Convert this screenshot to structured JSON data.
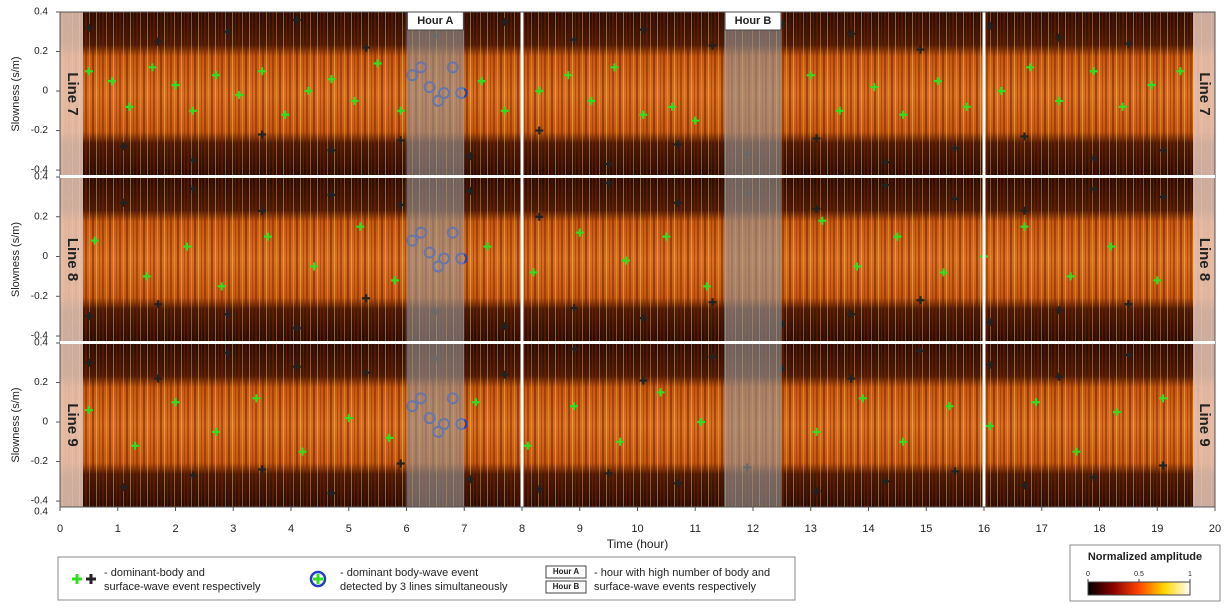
{
  "chart_data": [
    {
      "type": "scatter",
      "panel_label": "Line 7",
      "ylabel": "Slowness (s/m)",
      "ylim": [
        -0.43,
        0.4
      ],
      "yticks": [
        -0.4,
        -0.2,
        0,
        0.2,
        0.4
      ],
      "highlights": [
        {
          "label": "Hour A",
          "range": [
            6,
            7
          ]
        },
        {
          "label": "Hour B",
          "range": [
            11.5,
            12.5
          ]
        }
      ],
      "gap_lines": [
        8,
        16
      ],
      "series": [
        {
          "color": "#222222",
          "marker": "plus",
          "x": [
            0.5,
            1.1,
            1.7,
            2.3,
            2.9,
            3.5,
            4.1,
            4.7,
            5.3,
            5.9,
            6.5,
            7.1,
            7.7,
            8.3,
            8.9,
            9.5,
            10.1,
            10.7,
            11.3,
            11.9,
            12.5,
            13.1,
            13.7,
            14.3,
            14.9,
            15.5,
            16.1,
            16.7,
            17.3,
            17.9,
            18.5,
            19.1
          ],
          "values": [
            0.32,
            -0.28,
            0.25,
            -0.35,
            0.3,
            -0.22,
            0.36,
            -0.3,
            0.22,
            -0.25,
            0.28,
            -0.33,
            0.35,
            -0.2,
            0.26,
            -0.37,
            0.31,
            -0.27,
            0.23,
            -0.32,
            0.34,
            -0.24,
            0.29,
            -0.36,
            0.21,
            -0.29,
            0.33,
            -0.23,
            0.27,
            -0.34,
            0.24,
            -0.3
          ]
        },
        {
          "color": "#33dd22",
          "marker": "plus",
          "x": [
            0.5,
            0.9,
            1.2,
            1.6,
            2.0,
            2.3,
            2.7,
            3.1,
            3.5,
            3.9,
            4.3,
            4.7,
            5.1,
            5.5,
            5.9,
            7.3,
            7.7,
            8.3,
            8.8,
            9.2,
            9.6,
            10.1,
            10.6,
            11.0,
            13.0,
            13.5,
            14.1,
            14.6,
            15.2,
            15.7,
            16.3,
            16.8,
            17.3,
            17.9,
            18.4,
            18.9,
            19.4
          ],
          "values": [
            0.1,
            0.05,
            -0.08,
            0.12,
            0.03,
            -0.1,
            0.08,
            -0.02,
            0.1,
            -0.12,
            0.0,
            0.06,
            -0.05,
            0.14,
            -0.1,
            0.05,
            -0.1,
            0.0,
            0.08,
            -0.05,
            0.12,
            -0.12,
            -0.08,
            -0.15,
            0.08,
            -0.1,
            0.02,
            -0.12,
            0.05,
            -0.08,
            0.0,
            0.12,
            -0.05,
            0.1,
            -0.08,
            0.03,
            0.1
          ]
        },
        {
          "color": "#1f3fbf",
          "marker": "circle",
          "x": [
            6.1,
            6.25,
            6.4,
            6.55,
            6.65,
            6.8,
            6.95
          ],
          "values": [
            0.08,
            0.12,
            0.02,
            -0.05,
            -0.01,
            0.12,
            -0.01
          ]
        }
      ]
    },
    {
      "type": "scatter",
      "panel_label": "Line 8",
      "ylabel": "Slowness (s/m)",
      "ylim": [
        -0.43,
        0.4
      ],
      "yticks": [
        -0.4,
        -0.2,
        0,
        0.2,
        0.4
      ],
      "series": [
        {
          "color": "#222222",
          "marker": "plus",
          "x": [
            0.5,
            1.1,
            1.7,
            2.3,
            2.9,
            3.5,
            4.1,
            4.7,
            5.3,
            5.9,
            6.5,
            7.1,
            7.7,
            8.3,
            8.9,
            9.5,
            10.1,
            10.7,
            11.3,
            11.9,
            12.5,
            13.1,
            13.7,
            14.3,
            14.9,
            15.5,
            16.1,
            16.7,
            17.3,
            17.9,
            18.5,
            19.1
          ],
          "values": [
            -0.3,
            0.27,
            -0.24,
            0.34,
            -0.29,
            0.23,
            -0.36,
            0.31,
            -0.21,
            0.26,
            -0.28,
            0.33,
            -0.35,
            0.2,
            -0.26,
            0.37,
            -0.31,
            0.27,
            -0.23,
            0.32,
            -0.34,
            0.24,
            -0.29,
            0.36,
            -0.22,
            0.29,
            -0.33,
            0.23,
            -0.27,
            0.34,
            -0.24,
            0.3
          ]
        },
        {
          "color": "#33dd22",
          "marker": "plus",
          "x": [
            0.6,
            1.5,
            2.2,
            2.8,
            3.6,
            4.4,
            5.2,
            5.8,
            7.4,
            8.2,
            9.0,
            9.8,
            10.5,
            11.2,
            13.2,
            13.8,
            14.5,
            15.3,
            16.0,
            16.7,
            17.5,
            18.2,
            19.0
          ],
          "values": [
            0.08,
            -0.1,
            0.05,
            -0.15,
            0.1,
            -0.05,
            0.15,
            -0.12,
            0.05,
            -0.08,
            0.12,
            -0.02,
            0.1,
            -0.15,
            0.18,
            -0.05,
            0.1,
            -0.08,
            0.0,
            0.15,
            -0.1,
            0.05,
            -0.12
          ]
        },
        {
          "color": "#1f3fbf",
          "marker": "circle",
          "x": [
            6.1,
            6.25,
            6.4,
            6.55,
            6.65,
            6.8,
            6.95
          ],
          "values": [
            0.08,
            0.12,
            0.02,
            -0.05,
            -0.01,
            0.12,
            -0.01
          ]
        }
      ]
    },
    {
      "type": "scatter",
      "panel_label": "Line 9",
      "ylabel": "Slowness (s/m)",
      "ylim": [
        -0.43,
        0.4
      ],
      "yticks": [
        -0.4,
        -0.2,
        0,
        0.2,
        0.4
      ],
      "axis_corner_label": "0.4",
      "xlabel": "Time (hour)",
      "xlim": [
        0,
        20
      ],
      "xticks": [
        0,
        1,
        2,
        3,
        4,
        5,
        6,
        7,
        8,
        9,
        10,
        11,
        12,
        13,
        14,
        15,
        16,
        17,
        18,
        19,
        20
      ],
      "series": [
        {
          "color": "#222222",
          "marker": "plus",
          "x": [
            0.5,
            1.1,
            1.7,
            2.3,
            2.9,
            3.5,
            4.1,
            4.7,
            5.3,
            5.9,
            6.5,
            7.1,
            7.7,
            8.3,
            8.9,
            9.5,
            10.1,
            10.7,
            11.3,
            11.9,
            12.5,
            13.1,
            13.7,
            14.3,
            14.9,
            15.5,
            16.1,
            16.7,
            17.3,
            17.9,
            18.5,
            19.1
          ],
          "values": [
            0.3,
            -0.33,
            0.22,
            -0.27,
            0.35,
            -0.24,
            0.28,
            -0.36,
            0.25,
            -0.21,
            0.32,
            -0.29,
            0.24,
            -0.34,
            0.37,
            -0.26,
            0.21,
            -0.31,
            0.33,
            -0.23,
            0.27,
            -0.35,
            0.22,
            -0.3,
            0.36,
            -0.25,
            0.29,
            -0.32,
            0.23,
            -0.28,
            0.34,
            -0.22
          ]
        },
        {
          "color": "#33dd22",
          "marker": "plus",
          "x": [
            0.5,
            1.3,
            2.0,
            2.7,
            3.4,
            4.2,
            5.0,
            5.7,
            7.2,
            8.1,
            8.9,
            9.7,
            10.4,
            11.1,
            13.1,
            13.9,
            14.6,
            15.4,
            16.1,
            16.9,
            17.6,
            18.3,
            19.1
          ],
          "values": [
            0.06,
            -0.12,
            0.1,
            -0.05,
            0.12,
            -0.15,
            0.02,
            -0.08,
            0.1,
            -0.12,
            0.08,
            -0.1,
            0.15,
            0.0,
            -0.05,
            0.12,
            -0.1,
            0.08,
            -0.02,
            0.1,
            -0.15,
            0.05,
            0.12
          ]
        },
        {
          "color": "#1f3fbf",
          "marker": "circle",
          "x": [
            6.1,
            6.25,
            6.4,
            6.55,
            6.65,
            6.8,
            6.95
          ],
          "values": [
            0.08,
            0.12,
            0.02,
            -0.05,
            -0.01,
            0.12,
            -0.01
          ]
        }
      ]
    }
  ],
  "legend": {
    "items": [
      {
        "lines": [
          "- dominant-body and",
          "surface-wave event respectively"
        ]
      },
      {
        "lines": [
          "- dominant body-wave event",
          "detected by 3 lines simultaneously"
        ]
      },
      {
        "boxes": [
          "Hour A",
          "Hour B"
        ],
        "lines": [
          "- hour with high number of body and",
          "surface-wave events respectively"
        ]
      }
    ]
  },
  "colorbar": {
    "title": "Normalized amplitude",
    "ticks": [
      0,
      0.5,
      1
    ],
    "colors": [
      "#000000",
      "#8b0000",
      "#ff4500",
      "#ffd700",
      "#ffffff"
    ]
  }
}
